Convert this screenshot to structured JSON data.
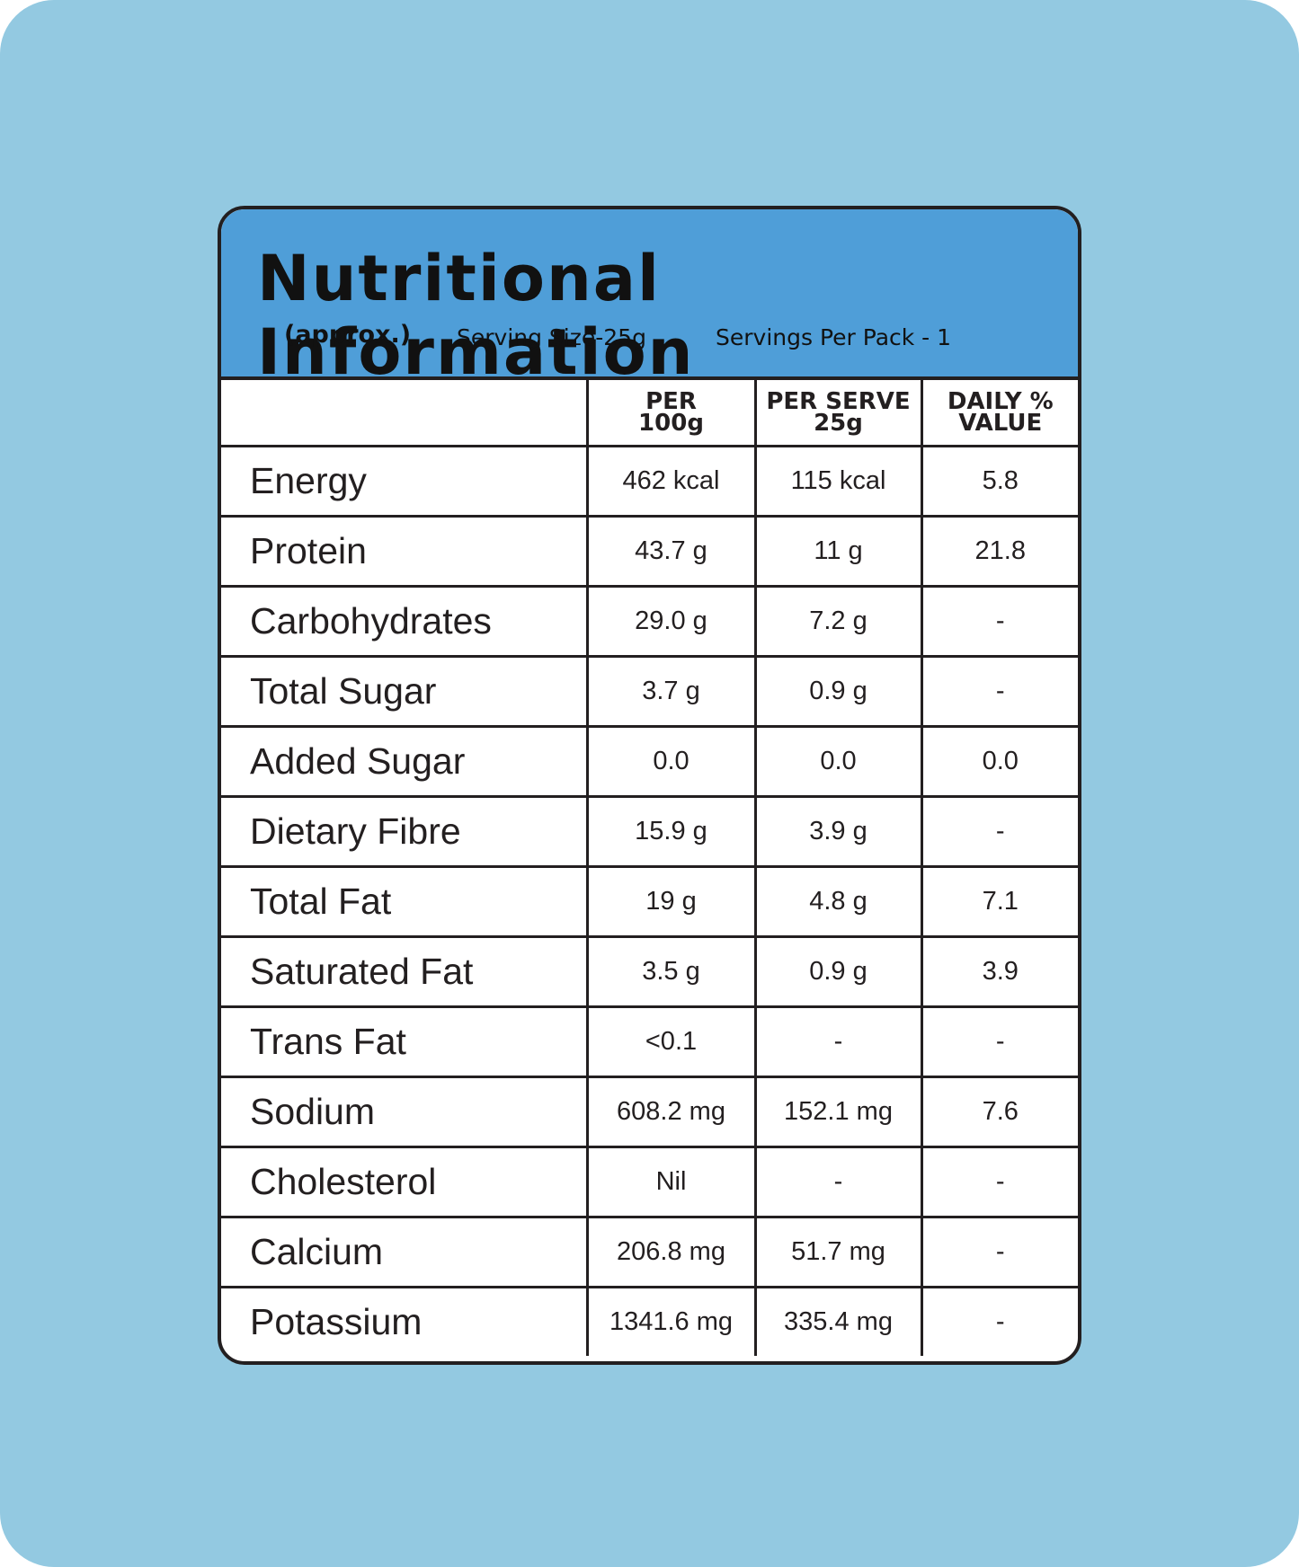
{
  "header": {
    "title": "Nutritional Information",
    "note": "(approx.)",
    "serving_size": "Serving Size-25g",
    "servings_per_pack": "Servings Per Pack - 1"
  },
  "table": {
    "columns": [
      [
        "PER",
        "100g"
      ],
      [
        "PER SERVE",
        "25g"
      ],
      [
        "DAILY %",
        "VALUE"
      ]
    ],
    "rows": [
      [
        "Energy",
        "462 kcal",
        "115 kcal",
        "5.8"
      ],
      [
        "Protein",
        "43.7 g",
        "11 g",
        "21.8"
      ],
      [
        "Carbohydrates",
        "29.0 g",
        "7.2 g",
        "-"
      ],
      [
        "Total Sugar",
        "3.7 g",
        "0.9 g",
        "-"
      ],
      [
        "Added Sugar",
        "0.0",
        "0.0",
        "0.0"
      ],
      [
        "Dietary Fibre",
        "15.9 g",
        "3.9 g",
        "-"
      ],
      [
        "Total Fat",
        "19 g",
        "4.8 g",
        "7.1"
      ],
      [
        "Saturated Fat",
        "3.5 g",
        "0.9 g",
        "3.9"
      ],
      [
        "Trans Fat",
        "<0.1",
        "-",
        "-"
      ],
      [
        "Sodium",
        "608.2 mg",
        "152.1 mg",
        "7.6"
      ],
      [
        "Cholesterol",
        "Nil",
        "-",
        "-"
      ],
      [
        "Calcium",
        "206.8 mg",
        "51.7 mg",
        "-"
      ],
      [
        "Potassium",
        "1341.6 mg",
        "335.4 mg",
        "-"
      ]
    ]
  }
}
